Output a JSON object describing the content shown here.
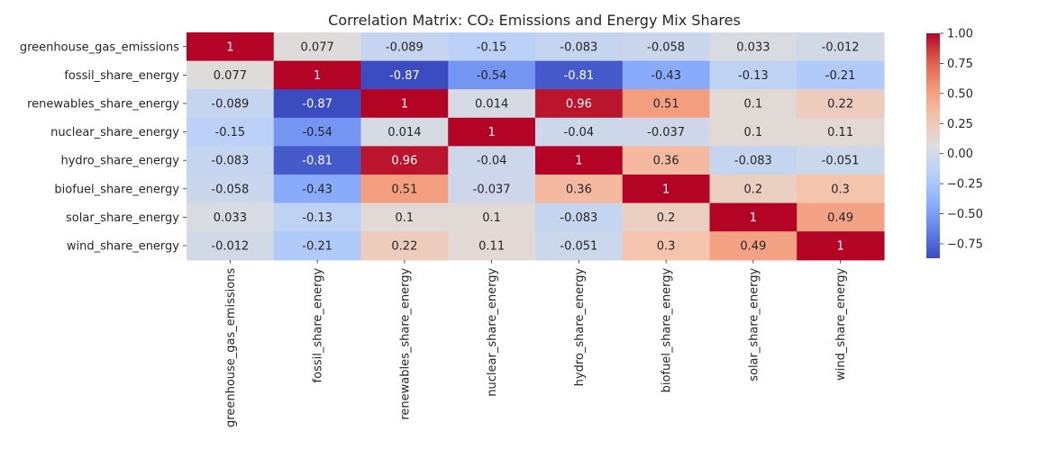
{
  "chart_data": {
    "type": "heatmap",
    "title": "Correlation Matrix: CO₂ Emissions and Energy Mix Shares",
    "row_labels": [
      "greenhouse_gas_emissions",
      "fossil_share_energy",
      "renewables_share_energy",
      "nuclear_share_energy",
      "hydro_share_energy",
      "biofuel_share_energy",
      "solar_share_energy",
      "wind_share_energy"
    ],
    "col_labels": [
      "greenhouse_gas_emissions",
      "fossil_share_energy",
      "renewables_share_energy",
      "nuclear_share_energy",
      "hydro_share_energy",
      "biofuel_share_energy",
      "solar_share_energy",
      "wind_share_energy"
    ],
    "values": [
      [
        1,
        0.077,
        -0.089,
        -0.15,
        -0.083,
        -0.058,
        0.033,
        -0.012
      ],
      [
        0.077,
        1,
        -0.87,
        -0.54,
        -0.81,
        -0.43,
        -0.13,
        -0.21
      ],
      [
        -0.089,
        -0.87,
        1,
        0.014,
        0.96,
        0.51,
        0.1,
        0.22
      ],
      [
        -0.15,
        -0.54,
        0.014,
        1,
        -0.04,
        -0.037,
        0.1,
        0.11
      ],
      [
        -0.083,
        -0.81,
        0.96,
        -0.04,
        1,
        0.36,
        -0.083,
        -0.051
      ],
      [
        -0.058,
        -0.43,
        0.51,
        -0.037,
        0.36,
        1,
        0.2,
        0.3
      ],
      [
        0.033,
        -0.13,
        0.1,
        0.1,
        -0.083,
        0.2,
        1,
        0.49
      ],
      [
        -0.012,
        -0.21,
        0.22,
        0.11,
        -0.051,
        0.3,
        0.49,
        1
      ]
    ],
    "annotations": [
      [
        "1",
        "0.077",
        "-0.089",
        "-0.15",
        "-0.083",
        "-0.058",
        "0.033",
        "-0.012"
      ],
      [
        "0.077",
        "1",
        "-0.87",
        "-0.54",
        "-0.81",
        "-0.43",
        "-0.13",
        "-0.21"
      ],
      [
        "-0.089",
        "-0.87",
        "1",
        "0.014",
        "0.96",
        "0.51",
        "0.1",
        "0.22"
      ],
      [
        "-0.15",
        "-0.54",
        "0.014",
        "1",
        "-0.04",
        "-0.037",
        "0.1",
        "0.11"
      ],
      [
        "-0.083",
        "-0.81",
        "0.96",
        "-0.04",
        "1",
        "0.36",
        "-0.083",
        "-0.051"
      ],
      [
        "-0.058",
        "-0.43",
        "0.51",
        "-0.037",
        "0.36",
        "1",
        "0.2",
        "0.3"
      ],
      [
        "0.033",
        "-0.13",
        "0.1",
        "0.1",
        "-0.083",
        "0.2",
        "1",
        "0.49"
      ],
      [
        "-0.012",
        "-0.21",
        "0.22",
        "0.11",
        "-0.051",
        "0.3",
        "0.49",
        "1"
      ]
    ],
    "colormap": "coolwarm",
    "vmin": -0.87,
    "vmax": 1.0,
    "colorbar_ticks": [
      "1.00",
      "0.75",
      "0.50",
      "0.25",
      "0.00",
      "−0.25",
      "−0.50",
      "−0.75"
    ],
    "colorbar_tick_values": [
      1.0,
      0.75,
      0.5,
      0.25,
      0.0,
      -0.25,
      -0.5,
      -0.75
    ],
    "grid": false,
    "colorbar_position": "right"
  }
}
